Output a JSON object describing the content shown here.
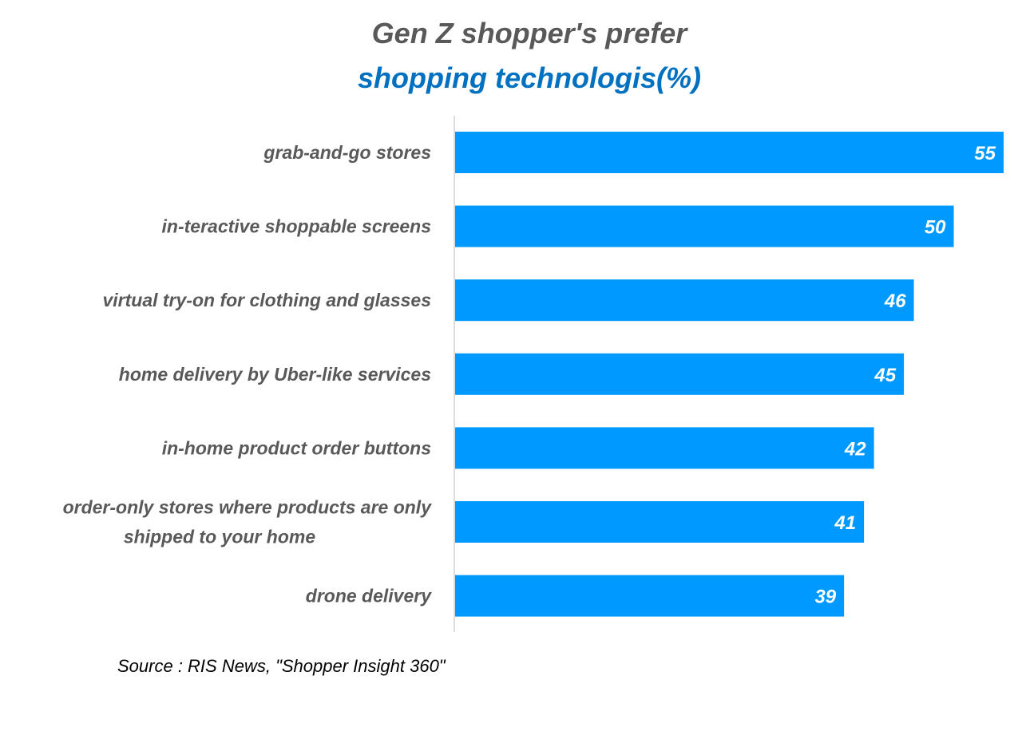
{
  "chart_data": {
    "type": "bar",
    "orientation": "horizontal",
    "title": "Gen Z shopper's prefer",
    "subtitle": "shopping technologis(%)",
    "categories": [
      "grab-and-go stores",
      "in-teractive shoppable screens",
      "virtual try-on for clothing and glasses",
      "home delivery by Uber-like services",
      "in-home product order buttons",
      "order-only stores where products are only shipped to your home",
      "drone delivery"
    ],
    "category_lines": [
      [
        "grab-and-go stores"
      ],
      [
        "in-teractive shoppable screens"
      ],
      [
        "virtual try-on for clothing and glasses"
      ],
      [
        "home delivery by Uber-like services"
      ],
      [
        "in-home product order buttons"
      ],
      [
        "order-only stores where products are only",
        "shipped to your home"
      ],
      [
        "drone delivery"
      ]
    ],
    "values": [
      55,
      50,
      46,
      45,
      42,
      41,
      39
    ],
    "xlim": [
      0,
      55
    ],
    "grid": false,
    "data_labels": true,
    "bar_color": "#0099ff",
    "title_color": "#595959",
    "subtitle_color": "#0070c0"
  },
  "source": "Source : RIS News, \"Shopper Insight 360\""
}
